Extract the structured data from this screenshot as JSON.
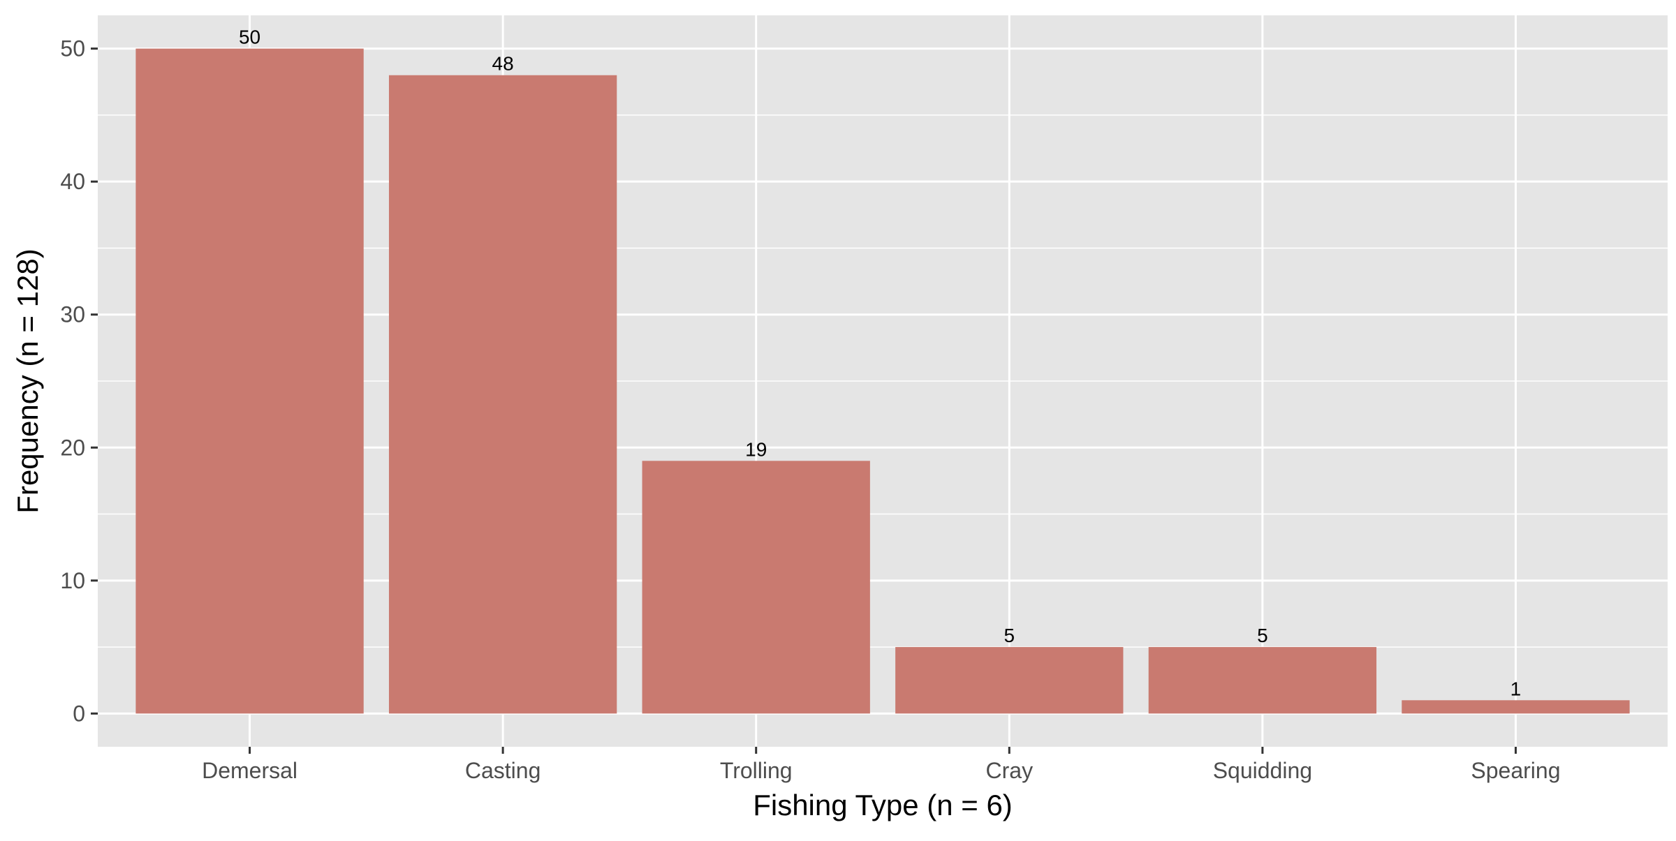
{
  "chart_data": {
    "type": "bar",
    "title": "",
    "xlabel": "Fishing Type (n = 6)",
    "ylabel": "Frequency (n = 128)",
    "categories": [
      "Demersal",
      "Casting",
      "Trolling",
      "Cray",
      "Squidding",
      "Spearing"
    ],
    "values": [
      50,
      48,
      19,
      5,
      5,
      1
    ],
    "data_labels": [
      "50",
      "48",
      "19",
      "5",
      "5",
      "1"
    ],
    "ylim": [
      -2.5,
      52.5
    ],
    "yticks": [
      0,
      10,
      20,
      30,
      40,
      50
    ],
    "ytick_labels": [
      "0",
      "10",
      "20",
      "30",
      "40",
      "50"
    ],
    "grid": true,
    "legend": "none",
    "colors": {
      "bar": "#C97A70",
      "panel": "#E5E5E5",
      "grid": "#FFFFFF",
      "tick": "#333333"
    }
  }
}
